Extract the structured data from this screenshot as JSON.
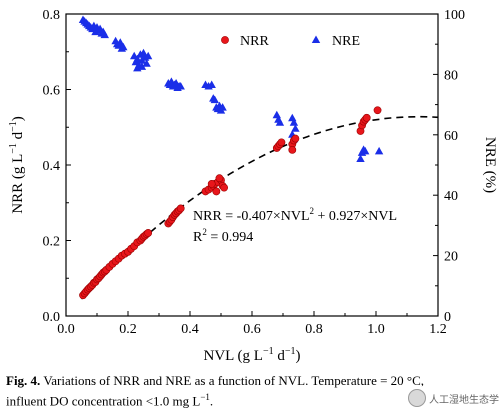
{
  "chart_data": {
    "type": "scatter",
    "x_axis": {
      "label_main": "NVL (g L",
      "label_sup1": "−1",
      "label_mid": " d",
      "label_sup2": "−1",
      "label_end": ")",
      "range": [
        0.0,
        1.2
      ],
      "ticks": [
        "0.0",
        "0.2",
        "0.4",
        "0.6",
        "0.8",
        "1.0",
        "1.2"
      ]
    },
    "y_left": {
      "label_main": "NRR (g L",
      "label_sup1": "−1",
      "label_mid": " d",
      "label_sup2": "−1",
      "label_end": ")",
      "range": [
        0.0,
        0.8
      ],
      "ticks": [
        "0.0",
        "0.2",
        "0.4",
        "0.6",
        "0.8"
      ]
    },
    "y_right": {
      "label": "NRE (%)",
      "range": [
        0,
        100
      ],
      "ticks": [
        "0",
        "20",
        "40",
        "60",
        "80",
        "100"
      ]
    },
    "legend": {
      "placement": "top-right",
      "items": [
        {
          "name": "NRR",
          "marker": "circle",
          "color": "#e8161b"
        },
        {
          "name": "NRE",
          "marker": "triangle",
          "color": "#1a2ee8"
        }
      ]
    },
    "series": [
      {
        "name": "NRR",
        "axis": "left",
        "color": "#e8161b",
        "points": [
          [
            0.055,
            0.055
          ],
          [
            0.06,
            0.06
          ],
          [
            0.065,
            0.065
          ],
          [
            0.07,
            0.07
          ],
          [
            0.075,
            0.074
          ],
          [
            0.08,
            0.078
          ],
          [
            0.085,
            0.082
          ],
          [
            0.09,
            0.088
          ],
          [
            0.095,
            0.09
          ],
          [
            0.1,
            0.097
          ],
          [
            0.105,
            0.1
          ],
          [
            0.11,
            0.105
          ],
          [
            0.115,
            0.11
          ],
          [
            0.12,
            0.115
          ],
          [
            0.125,
            0.118
          ],
          [
            0.13,
            0.122
          ],
          [
            0.14,
            0.13
          ],
          [
            0.15,
            0.138
          ],
          [
            0.16,
            0.145
          ],
          [
            0.17,
            0.152
          ],
          [
            0.18,
            0.16
          ],
          [
            0.19,
            0.165
          ],
          [
            0.2,
            0.17
          ],
          [
            0.21,
            0.178
          ],
          [
            0.22,
            0.185
          ],
          [
            0.23,
            0.195
          ],
          [
            0.24,
            0.2
          ],
          [
            0.245,
            0.205
          ],
          [
            0.25,
            0.21
          ],
          [
            0.255,
            0.213
          ],
          [
            0.26,
            0.217
          ],
          [
            0.265,
            0.22
          ],
          [
            0.33,
            0.245
          ],
          [
            0.335,
            0.25
          ],
          [
            0.34,
            0.255
          ],
          [
            0.345,
            0.262
          ],
          [
            0.35,
            0.268
          ],
          [
            0.355,
            0.272
          ],
          [
            0.36,
            0.277
          ],
          [
            0.365,
            0.28
          ],
          [
            0.37,
            0.285
          ],
          [
            0.45,
            0.33
          ],
          [
            0.46,
            0.335
          ],
          [
            0.47,
            0.34
          ],
          [
            0.475,
            0.345
          ],
          [
            0.48,
            0.35
          ],
          [
            0.49,
            0.355
          ],
          [
            0.5,
            0.36
          ],
          [
            0.495,
            0.365
          ],
          [
            0.505,
            0.345
          ],
          [
            0.51,
            0.34
          ],
          [
            0.485,
            0.33
          ],
          [
            0.47,
            0.35
          ],
          [
            0.68,
            0.445
          ],
          [
            0.685,
            0.45
          ],
          [
            0.69,
            0.455
          ],
          [
            0.695,
            0.46
          ],
          [
            0.73,
            0.455
          ],
          [
            0.735,
            0.465
          ],
          [
            0.74,
            0.47
          ],
          [
            0.73,
            0.44
          ],
          [
            0.95,
            0.49
          ],
          [
            0.955,
            0.505
          ],
          [
            0.96,
            0.515
          ],
          [
            0.965,
            0.52
          ],
          [
            0.97,
            0.525
          ],
          [
            1.005,
            0.545
          ]
        ]
      },
      {
        "name": "NRE",
        "axis": "right",
        "color": "#1a2ee8",
        "points": [
          [
            0.055,
            98
          ],
          [
            0.06,
            97.5
          ],
          [
            0.065,
            97
          ],
          [
            0.07,
            96.5
          ],
          [
            0.075,
            96
          ],
          [
            0.08,
            95.5
          ],
          [
            0.085,
            95
          ],
          [
            0.09,
            96
          ],
          [
            0.095,
            94
          ],
          [
            0.1,
            95.5
          ],
          [
            0.105,
            94.5
          ],
          [
            0.11,
            95
          ],
          [
            0.115,
            93.5
          ],
          [
            0.12,
            94
          ],
          [
            0.125,
            93
          ],
          [
            0.16,
            91
          ],
          [
            0.165,
            90
          ],
          [
            0.17,
            89.5
          ],
          [
            0.175,
            90.5
          ],
          [
            0.18,
            88.5
          ],
          [
            0.185,
            89
          ],
          [
            0.22,
            86
          ],
          [
            0.225,
            84
          ],
          [
            0.23,
            85
          ],
          [
            0.235,
            83
          ],
          [
            0.24,
            86.5
          ],
          [
            0.245,
            84.5
          ],
          [
            0.25,
            87
          ],
          [
            0.255,
            85.5
          ],
          [
            0.26,
            83.5
          ],
          [
            0.265,
            86
          ],
          [
            0.23,
            82
          ],
          [
            0.245,
            82.5
          ],
          [
            0.33,
            77
          ],
          [
            0.335,
            76.5
          ],
          [
            0.34,
            77.5
          ],
          [
            0.345,
            76
          ],
          [
            0.35,
            76.5
          ],
          [
            0.355,
            77
          ],
          [
            0.36,
            75.5
          ],
          [
            0.365,
            76
          ],
          [
            0.37,
            76
          ],
          [
            0.45,
            76.5
          ],
          [
            0.46,
            76
          ],
          [
            0.47,
            76.5
          ],
          [
            0.475,
            72
          ],
          [
            0.48,
            71.5
          ],
          [
            0.485,
            69
          ],
          [
            0.49,
            68.5
          ],
          [
            0.495,
            69.5
          ],
          [
            0.5,
            68
          ],
          [
            0.505,
            69
          ],
          [
            0.68,
            66.5
          ],
          [
            0.685,
            65
          ],
          [
            0.69,
            64
          ],
          [
            0.73,
            65.5
          ],
          [
            0.735,
            64
          ],
          [
            0.74,
            62
          ],
          [
            0.73,
            60
          ],
          [
            0.735,
            58.5
          ],
          [
            0.95,
            52
          ],
          [
            0.955,
            54
          ],
          [
            0.96,
            55
          ],
          [
            0.965,
            54.5
          ],
          [
            1.01,
            54.5
          ]
        ]
      }
    ],
    "fit": {
      "name": "fit",
      "style": "dashed",
      "a": -0.407,
      "b": 0.927,
      "x_range": [
        0.05,
        1.2
      ],
      "eq_prefix": "NRR = -0.407×NVL",
      "eq_sup": "2",
      "eq_suffix": " + 0.927×NVL",
      "r2_label": "R",
      "r2_sup": "2",
      "r2_value": " = 0.994"
    }
  },
  "caption": {
    "fig_label": "Fig. 4.",
    "text_part1": " Variations of NRR and NRE as a function of NVL. Temperature = 20 °C,",
    "text_part2": "influent DO concentration <1.0 mg L",
    "text_sup": "−1",
    "text_end": "."
  },
  "watermark": {
    "text": "人工湿地生态学"
  }
}
